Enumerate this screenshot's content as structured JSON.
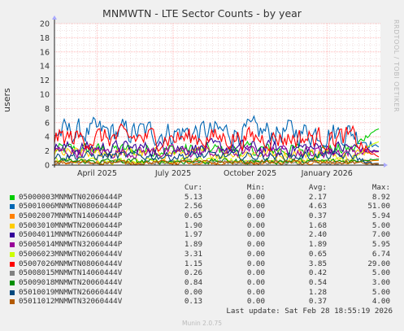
{
  "colors": {
    "background": "#f0f0f0",
    "plot_background": "#ffffff",
    "major_grid": "#ffaaaa",
    "minor_grid": "#e6c8c8",
    "axis": "#222222",
    "series": [
      "#00cc00",
      "#0066b3",
      "#ff8000",
      "#ffcc00",
      "#330099",
      "#990099",
      "#ccff00",
      "#ff0000",
      "#808080",
      "#008f00",
      "#00487d",
      "#b35a00"
    ]
  },
  "chart_data": {
    "type": "line",
    "title": "MNMWTN - LTE Sector Counts - by year",
    "ylabel": "users",
    "xlabel": "",
    "ylim": [
      0,
      20
    ],
    "yticks": [
      0,
      2,
      4,
      6,
      8,
      10,
      12,
      14,
      16,
      18,
      20
    ],
    "x_range": [
      "2025-02-09",
      "2026-03-06"
    ],
    "xticks": [
      {
        "label": "April 2025",
        "date": "2025-04-01"
      },
      {
        "label": "July 2025",
        "date": "2025-07-01"
      },
      {
        "label": "October 2025",
        "date": "2025-10-01"
      },
      {
        "label": "January 2026",
        "date": "2026-01-01"
      }
    ],
    "grid": true,
    "legend_columns": [
      "Cur:",
      "Min:",
      "Avg:",
      "Max:"
    ],
    "series": [
      {
        "name": "05000003MNMWTN02060444P",
        "cur": "5.13",
        "min": "0.00",
        "avg": "2.17",
        "max": "8.92"
      },
      {
        "name": "05001006MNMWTN08060444P",
        "cur": "2.56",
        "min": "0.00",
        "avg": "4.63",
        "max": "51.00"
      },
      {
        "name": "05002007MNMWTN14060444P",
        "cur": "0.65",
        "min": "0.00",
        "avg": "0.37",
        "max": "5.94"
      },
      {
        "name": "05003010MNMWTN20060444P",
        "cur": "1.90",
        "min": "0.00",
        "avg": "1.68",
        "max": "5.00"
      },
      {
        "name": "05004011MNMWTN26060444P",
        "cur": "1.97",
        "min": "0.00",
        "avg": "2.40",
        "max": "7.00"
      },
      {
        "name": "05005014MNMWTN32060444P",
        "cur": "1.89",
        "min": "0.00",
        "avg": "1.89",
        "max": "5.95"
      },
      {
        "name": "05006023MNMWTN02060444V",
        "cur": "3.31",
        "min": "0.00",
        "avg": "0.65",
        "max": "6.74"
      },
      {
        "name": "05007026MNMWTN08060444V",
        "cur": "1.15",
        "min": "0.00",
        "avg": "3.85",
        "max": "29.00"
      },
      {
        "name": "05008015MNMWTN14060444V",
        "cur": "0.26",
        "min": "0.00",
        "avg": "0.42",
        "max": "5.00"
      },
      {
        "name": "05009018MNMWTN20060444V",
        "cur": "0.84",
        "min": "0.00",
        "avg": "0.54",
        "max": "3.00"
      },
      {
        "name": "05010019MNMWTN26060444V",
        "cur": "0.00",
        "min": "0.00",
        "avg": "1.28",
        "max": "5.00"
      },
      {
        "name": "05011012MNMWTN32060444V",
        "cur": "0.13",
        "min": "0.00",
        "avg": "0.37",
        "max": "4.00"
      }
    ]
  },
  "watermark": "RRDTOOL / TOBI OETIKER",
  "last_update": "Last update: Sat Feb 28 18:55:19 2026",
  "footer": "Munin 2.0.75"
}
